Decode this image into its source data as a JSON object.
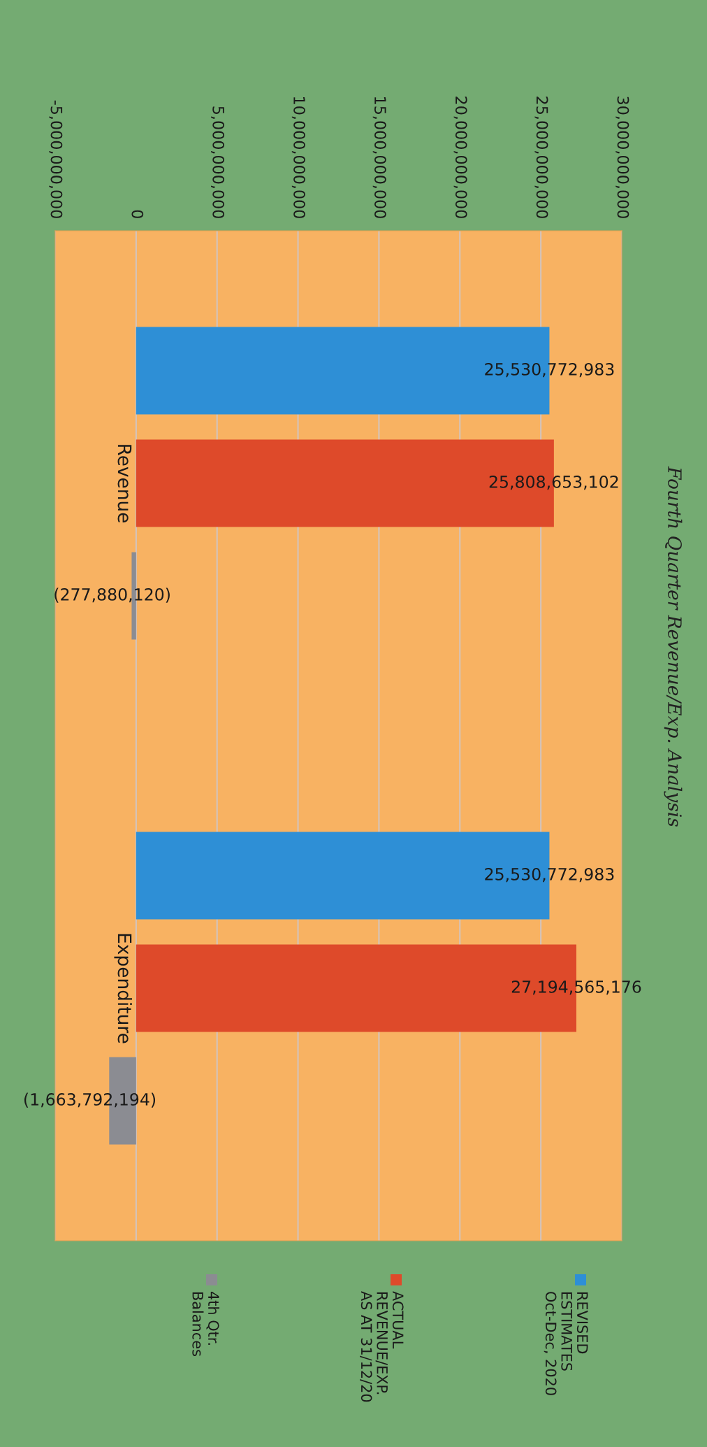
{
  "chart_data": {
    "type": "bar",
    "orientation": "horizontal",
    "title": "Fourth Quarter Revenue/Exp. Analysis",
    "categories": [
      "Revenue",
      "Expenditure"
    ],
    "series": [
      {
        "name": "REVISED ESTIMATES Oct-Dec, 2020",
        "color": "#2e8fd6",
        "values": [
          25530772983,
          25530772983
        ],
        "value_labels": [
          "25,530,772,983",
          "25,530,772,983"
        ]
      },
      {
        "name": "ACTUAL REVENUE/EXP. AS AT 31/12/20",
        "color": "#de4a2a",
        "values": [
          25808653102,
          27194565176
        ],
        "value_labels": [
          "25,808,653,102",
          "27,194,565,176"
        ]
      },
      {
        "name": "4th Qtr. Balances",
        "color": "#8b8c92",
        "values": [
          -277880120,
          -1663792194
        ],
        "value_labels": [
          "(277,880,120)",
          "(1,663,792,194)"
        ]
      }
    ],
    "xlim": [
      -5000000000,
      30000000000
    ],
    "xticks": [
      {
        "value": -5000000000,
        "label": "-5,000,000,000"
      },
      {
        "value": 0,
        "label": "0"
      },
      {
        "value": 5000000000,
        "label": "5,000,000,000"
      },
      {
        "value": 10000000000,
        "label": "10,000,000,000"
      },
      {
        "value": 15000000000,
        "label": "15,000,000,000"
      },
      {
        "value": 20000000000,
        "label": "20,000,000,000"
      },
      {
        "value": 25000000000,
        "label": "25,000,000,000"
      },
      {
        "value": 30000000000,
        "label": "30,000,000,000"
      }
    ],
    "grid": "x",
    "legend": "bottom"
  }
}
